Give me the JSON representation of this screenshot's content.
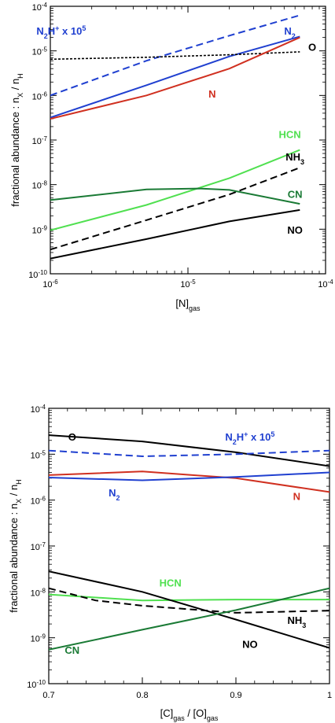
{
  "chart_data": [
    {
      "type": "line",
      "xscale": "log",
      "yscale": "log",
      "xlim": [
        1e-06,
        0.0001
      ],
      "ylim": [
        1e-10,
        0.0001
      ],
      "xlabel": "[N]",
      "xlabel_sub": "gas",
      "ylabel": "fractional abundance : n",
      "ylabel_sub1": "X",
      "ylabel_mid": " / n",
      "ylabel_sub2": "H",
      "x_ticks": [
        {
          "value": 1e-06,
          "base": "10",
          "exp": "-6"
        },
        {
          "value": 1e-05,
          "base": "10",
          "exp": "-5"
        },
        {
          "value": 0.0001,
          "base": "10",
          "exp": "-4"
        }
      ],
      "y_ticks": [
        {
          "value": 1e-10,
          "base": "10",
          "exp": "-10"
        },
        {
          "value": 1e-09,
          "base": "10",
          "exp": "-9"
        },
        {
          "value": 1e-08,
          "base": "10",
          "exp": "-8"
        },
        {
          "value": 1e-07,
          "base": "10",
          "exp": "-7"
        },
        {
          "value": 1e-06,
          "base": "10",
          "exp": "-6"
        },
        {
          "value": 1e-05,
          "base": "10",
          "exp": "-5"
        },
        {
          "value": 0.0001,
          "base": "10",
          "exp": "-4"
        }
      ],
      "series": [
        {
          "key": "n2hplus",
          "color": "#2040d0",
          "dash": "dashed",
          "x": [
            1e-06,
            5e-06,
            2e-05,
            6.5e-05
          ],
          "y": [
            1e-06,
            6e-06,
            2.2e-05,
            6.3e-05
          ],
          "label": [
            {
              "t": "N",
              "s": "n"
            },
            {
              "t": "2",
              "s": "sub"
            },
            {
              "t": "H",
              "s": "n"
            },
            {
              "t": "+",
              "s": "sup"
            },
            {
              "t": " x 10",
              "s": "n"
            },
            {
              "t": "5",
              "s": "sup"
            }
          ],
          "label_at": [
            1.2e-06,
            2.3e-05
          ]
        },
        {
          "key": "n2",
          "color": "#2040d0",
          "dash": "solid",
          "x": [
            1e-06,
            5e-06,
            2e-05,
            6.5e-05
          ],
          "y": [
            3.2e-07,
            1.7e-06,
            7.5e-06,
            2.1e-05
          ],
          "label": [
            {
              "t": "N",
              "s": "n"
            },
            {
              "t": "2",
              "s": "sub"
            }
          ],
          "label_at": [
            5.5e-05,
            2.3e-05
          ]
        },
        {
          "key": "o",
          "color": "#000000",
          "dash": "dotted",
          "x": [
            1e-06,
            5e-06,
            2e-05,
            6.5e-05
          ],
          "y": [
            6.5e-06,
            7.2e-06,
            8.2e-06,
            9.5e-06
          ],
          "label": [
            {
              "t": "O",
              "s": "n"
            }
          ],
          "label_at": [
            8e-05,
            1e-05
          ]
        },
        {
          "key": "n",
          "color": "#d03020",
          "dash": "solid",
          "x": [
            1e-06,
            5e-06,
            2e-05,
            6.5e-05
          ],
          "y": [
            3e-07,
            1e-06,
            4e-06,
            2e-05
          ],
          "label": [
            {
              "t": "N",
              "s": "n"
            }
          ],
          "label_at": [
            1.5e-05,
            9e-07
          ]
        },
        {
          "key": "hcn",
          "color": "#50e050",
          "dash": "solid",
          "x": [
            1e-06,
            5e-06,
            2e-05,
            6.5e-05
          ],
          "y": [
            9.5e-10,
            3.5e-09,
            1.4e-08,
            6e-08
          ],
          "label": [
            {
              "t": "HCN",
              "s": "n"
            }
          ],
          "label_at": [
            5.5e-05,
            1.1e-07
          ]
        },
        {
          "key": "nh3",
          "color": "#000000",
          "dash": "dashed",
          "x": [
            1e-06,
            5e-06,
            2e-05,
            6.5e-05
          ],
          "y": [
            3.5e-10,
            1.6e-09,
            6e-09,
            2.4e-08
          ],
          "label": [
            {
              "t": "NH",
              "s": "n"
            },
            {
              "t": "3",
              "s": "sub"
            }
          ],
          "label_at": [
            6e-05,
            3.5e-08
          ]
        },
        {
          "key": "cn",
          "color": "#1a7a35",
          "dash": "solid",
          "x": [
            1e-06,
            5e-06,
            1.2e-05,
            2e-05,
            6.5e-05
          ],
          "y": [
            4.5e-09,
            7.8e-09,
            8.2e-09,
            7.6e-09,
            3.7e-09
          ],
          "label": [
            {
              "t": "CN",
              "s": "n"
            }
          ],
          "label_at": [
            6e-05,
            5e-09
          ]
        },
        {
          "key": "no",
          "color": "#000000",
          "dash": "solid",
          "x": [
            1e-06,
            5e-06,
            2e-05,
            6.5e-05
          ],
          "y": [
            2.2e-10,
            6e-10,
            1.5e-09,
            2.7e-09
          ],
          "label": [
            {
              "t": "NO",
              "s": "n"
            }
          ],
          "label_at": [
            6e-05,
            8e-10
          ]
        }
      ]
    },
    {
      "type": "line",
      "xscale": "linear",
      "yscale": "log",
      "xlim": [
        0.7,
        1.0
      ],
      "ylim": [
        1e-10,
        0.0001
      ],
      "xlabel_parts": [
        {
          "t": "[C]",
          "s": "n"
        },
        {
          "t": "gas",
          "s": "sub"
        },
        {
          "t": " / [O]",
          "s": "n"
        },
        {
          "t": "gas",
          "s": "sub"
        }
      ],
      "ylabel": "fractional abundance : n",
      "ylabel_sub1": "X",
      "ylabel_mid": " / n",
      "ylabel_sub2": "H",
      "x_ticks": [
        {
          "value": 0.7,
          "label": "0.7"
        },
        {
          "value": 0.8,
          "label": "0.8"
        },
        {
          "value": 0.9,
          "label": "0.9"
        },
        {
          "value": 1.0,
          "label": "1"
        }
      ],
      "y_ticks": [
        {
          "value": 1e-10,
          "base": "10",
          "exp": "-10"
        },
        {
          "value": 1e-09,
          "base": "10",
          "exp": "-9"
        },
        {
          "value": 1e-08,
          "base": "10",
          "exp": "-8"
        },
        {
          "value": 1e-07,
          "base": "10",
          "exp": "-7"
        },
        {
          "value": 1e-06,
          "base": "10",
          "exp": "-6"
        },
        {
          "value": 1e-05,
          "base": "10",
          "exp": "-5"
        },
        {
          "value": 0.0001,
          "base": "10",
          "exp": "-4"
        }
      ],
      "series": [
        {
          "key": "o",
          "color": "#000000",
          "dash": "solid",
          "x": [
            0.7,
            0.8,
            0.9,
            1.0
          ],
          "y": [
            2.6e-05,
            1.9e-05,
            1.1e-05,
            5.5e-06
          ],
          "label": [
            {
              "t": "O",
              "s": "n"
            }
          ],
          "label_at": [
            0.725,
            2e-05
          ]
        },
        {
          "key": "n2hplus",
          "color": "#2040d0",
          "dash": "dashed",
          "x": [
            0.7,
            0.8,
            0.9,
            1.0
          ],
          "y": [
            1.2e-05,
            9e-06,
            1e-05,
            1.2e-05
          ],
          "label": [
            {
              "t": "N",
              "s": "n"
            },
            {
              "t": "2",
              "s": "sub"
            },
            {
              "t": "H",
              "s": "n"
            },
            {
              "t": "+",
              "s": "sup"
            },
            {
              "t": " x 10",
              "s": "n"
            },
            {
              "t": "5",
              "s": "sup"
            }
          ],
          "label_at": [
            0.915,
            2e-05
          ]
        },
        {
          "key": "n",
          "color": "#d03020",
          "dash": "solid",
          "x": [
            0.7,
            0.8,
            0.9,
            1.0
          ],
          "y": [
            3.5e-06,
            4.2e-06,
            3e-06,
            1.5e-06
          ],
          "label": [
            {
              "t": "N",
              "s": "n"
            }
          ],
          "label_at": [
            0.965,
            1e-06
          ]
        },
        {
          "key": "n2",
          "color": "#2040d0",
          "dash": "solid",
          "x": [
            0.7,
            0.8,
            0.9,
            1.0
          ],
          "y": [
            3.1e-06,
            2.7e-06,
            3.2e-06,
            4e-06
          ],
          "label": [
            {
              "t": "N",
              "s": "n"
            },
            {
              "t": "2",
              "s": "sub"
            }
          ],
          "label_at": [
            0.77,
            1.2e-06
          ]
        },
        {
          "key": "hcn",
          "color": "#50e050",
          "dash": "solid",
          "x": [
            0.7,
            0.8,
            0.9,
            1.0
          ],
          "y": [
            8.8e-09,
            6.5e-09,
            6.8e-09,
            6.8e-09
          ],
          "label": [
            {
              "t": "HCN",
              "s": "n"
            }
          ],
          "label_at": [
            0.83,
            1.3e-08
          ]
        },
        {
          "key": "nh3",
          "color": "#000000",
          "dash": "dashed",
          "x": [
            0.7,
            0.75,
            0.8,
            0.9,
            1.0
          ],
          "y": [
            1.2e-08,
            6.5e-09,
            5e-09,
            3.5e-09,
            3.9e-09
          ],
          "label": [
            {
              "t": "NH",
              "s": "n"
            },
            {
              "t": "3",
              "s": "sub"
            }
          ],
          "label_at": [
            0.965,
            2e-09
          ]
        },
        {
          "key": "no",
          "color": "#000000",
          "dash": "solid",
          "x": [
            0.7,
            0.8,
            0.9,
            1.0
          ],
          "y": [
            2.8e-08,
            1e-08,
            2.5e-09,
            6e-10
          ],
          "label": [
            {
              "t": "NO",
              "s": "n"
            }
          ],
          "label_at": [
            0.915,
            6e-10
          ]
        },
        {
          "key": "cn",
          "color": "#1a7a35",
          "dash": "solid",
          "x": [
            0.7,
            0.8,
            0.9,
            1.0
          ],
          "y": [
            5.5e-10,
            1.5e-09,
            4e-09,
            1.2e-08
          ],
          "label": [
            {
              "t": "CN",
              "s": "n"
            }
          ],
          "label_at": [
            0.725,
            4.5e-10
          ]
        }
      ]
    }
  ]
}
